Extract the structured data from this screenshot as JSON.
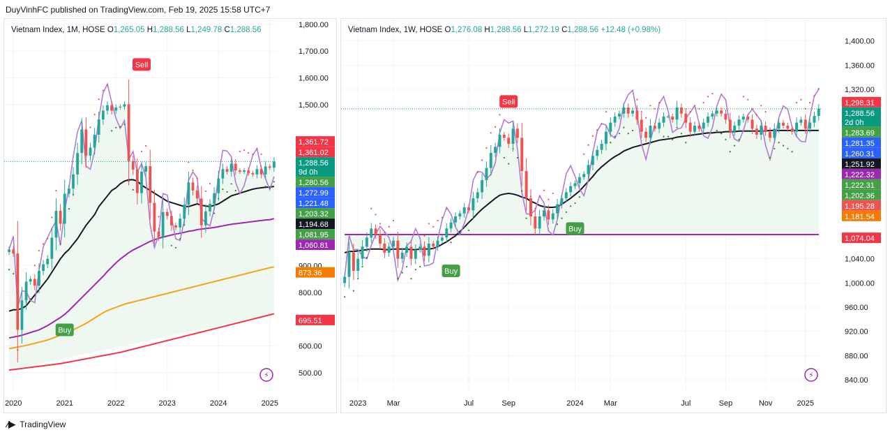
{
  "header": {
    "text": "DuyVinhFC published on TradingView.com, Feb 19, 2025 15:58 UTC+7"
  },
  "footer": {
    "brand": "TradingView",
    "logo_icon": "tradingview-logo-icon"
  },
  "colors": {
    "up": "#26a69a",
    "down": "#ef5350",
    "ma_black": "#131722",
    "ma_purple": "#9c27b0",
    "ma_orange": "#f7a21b",
    "ma_red": "#f23645",
    "green_line": "#4caf50",
    "lilac": "#b07bd3",
    "sar": "#2962ff"
  },
  "chart_data": [
    {
      "type": "candlestick",
      "title": "Vietnam Index, 1M, HOSE",
      "ohlc_label": {
        "o": "1,265.05",
        "h": "1,288.56",
        "l": "1,249.78",
        "c": "1,288.56"
      },
      "ylim": [
        440,
        1810
      ],
      "y_ticks": [
        1800,
        1700,
        1600,
        1500,
        900,
        800,
        600,
        500
      ],
      "x_labels": [
        "2020",
        "2021",
        "2022",
        "2023",
        "2024",
        "2025"
      ],
      "x_label_index": [
        1,
        13,
        25,
        37,
        49,
        61
      ],
      "n_bars": 63,
      "close_series": [
        960,
        945,
        660,
        770,
        840,
        850,
        825,
        880,
        905,
        925,
        1004,
        1104,
        1056,
        1168,
        1187,
        1240,
        1320,
        1408,
        1310,
        1340,
        1388,
        1445,
        1478,
        1498,
        1478,
        1490,
        1493,
        1502,
        1290,
        1258,
        1170,
        1250,
        1271,
        1134,
        1027,
        1007,
        1100,
        1085,
        1050,
        1042,
        1075,
        1127,
        1210,
        1180,
        1150,
        1050,
        1102,
        1130,
        1170,
        1225,
        1260,
        1250,
        1280,
        1255,
        1250,
        1255,
        1245,
        1240,
        1260,
        1240,
        1270,
        1265,
        1288
      ],
      "ma_black": [
        730,
        735,
        735,
        740,
        750,
        770,
        790,
        810,
        830,
        850,
        875,
        900,
        925,
        945,
        960,
        980,
        1000,
        1025,
        1050,
        1070,
        1090,
        1120,
        1140,
        1160,
        1180,
        1190,
        1205,
        1215,
        1220,
        1220,
        1215,
        1200,
        1190,
        1180,
        1170,
        1160,
        1150,
        1140,
        1135,
        1130,
        1125,
        1120,
        1120,
        1125,
        1130,
        1125,
        1122,
        1120,
        1125,
        1130,
        1140,
        1150,
        1160,
        1165,
        1170,
        1175,
        1180,
        1185,
        1188,
        1190,
        1192,
        1193,
        1195
      ],
      "ma_purple": [
        630,
        633,
        636,
        640,
        645,
        650,
        655,
        660,
        668,
        676,
        686,
        696,
        706,
        718,
        732,
        748,
        764,
        780,
        796,
        812,
        828,
        844,
        860,
        878,
        894,
        910,
        924,
        936,
        948,
        958,
        966,
        974,
        982,
        990,
        996,
        1002,
        1006,
        1010,
        1014,
        1018,
        1020,
        1024,
        1028,
        1030,
        1034,
        1036,
        1038,
        1040,
        1042,
        1045,
        1048,
        1051,
        1054,
        1056,
        1058,
        1060,
        1062,
        1064,
        1066,
        1068,
        1070,
        1071,
        1075
      ],
      "ma_orange": [
        590,
        593,
        596,
        599,
        602,
        606,
        610,
        614,
        618,
        622,
        628,
        634,
        640,
        646,
        652,
        660,
        668,
        676,
        684,
        694,
        704,
        714,
        724,
        732,
        738,
        744,
        750,
        756,
        760,
        764,
        768,
        772,
        776,
        780,
        784,
        788,
        792,
        796,
        800,
        804,
        808,
        812,
        816,
        820,
        824,
        828,
        832,
        836,
        840,
        844,
        848,
        852,
        856,
        860,
        864,
        868,
        872,
        876,
        880,
        884,
        888,
        892,
        895
      ],
      "ma_red": [
        510,
        512,
        514,
        516,
        518,
        520,
        522,
        524,
        526,
        528,
        530,
        532,
        534,
        537,
        540,
        543,
        546,
        549,
        552,
        555,
        558,
        561,
        564,
        567,
        570,
        573,
        576,
        580,
        584,
        588,
        592,
        596,
        600,
        604,
        608,
        612,
        616,
        620,
        624,
        628,
        632,
        636,
        640,
        644,
        648,
        652,
        656,
        660,
        664,
        668,
        672,
        676,
        680,
        684,
        688,
        692,
        696,
        700,
        704,
        708,
        712,
        716,
        720
      ],
      "price_labels": [
        {
          "text": "1,361.72",
          "v": 1361.72,
          "color": "#f23645"
        },
        {
          "text": "1,361.02",
          "v": 1361.02,
          "color": "#f23645"
        },
        {
          "text": "1,288.56",
          "v": 1288.56,
          "color": "#089981",
          "sub": "9d 0h"
        },
        {
          "text": "1,280.56",
          "v": 1280.56,
          "color": "#43a047"
        },
        {
          "text": "1,272.99",
          "v": 1272.99,
          "color": "#2962ff"
        },
        {
          "text": "1,221.48",
          "v": 1221.48,
          "color": "#2962ff"
        },
        {
          "text": "1,203.32",
          "v": 1203.32,
          "color": "#43a047"
        },
        {
          "text": "1,194.68",
          "v": 1194.68,
          "color": "#131722"
        },
        {
          "text": "1,081.95",
          "v": 1081.95,
          "color": "#43a047"
        },
        {
          "text": "1,060.81",
          "v": 1060.81,
          "color": "#9c27b0"
        },
        {
          "text": "873.36",
          "v": 873.36,
          "color": "#f57c00"
        },
        {
          "text": "695.51",
          "v": 695.51,
          "color": "#f23645"
        }
      ],
      "signals": [
        {
          "text": "Sell",
          "index": 31,
          "price": 1650,
          "kind": "sell"
        },
        {
          "text": "Buy",
          "index": 13,
          "price": 660,
          "kind": "buy"
        }
      ]
    },
    {
      "type": "candlestick",
      "title": "Vietnam Index, 1W, HOSE",
      "ohlc_label": {
        "o": "1,276.08",
        "h": "1,288.56",
        "l": "1,272.19",
        "c": "1,288.56",
        "chg": "+12.48 (+0.98%)"
      },
      "ylim": [
        825,
        1425
      ],
      "y_ticks": [
        1400,
        1360,
        1320,
        1040,
        1000,
        960,
        920,
        880,
        840
      ],
      "x_labels": [
        "2023",
        "Mar",
        "Jul",
        "Sep",
        "2024",
        "Mar",
        "Jul",
        "Sep",
        "Nov",
        "2025"
      ],
      "x_label_index": [
        3,
        11,
        28,
        37,
        52,
        60,
        77,
        86,
        95,
        104
      ],
      "n_bars": 108,
      "close_series": [
        1010,
        1050,
        1020,
        1040,
        1060,
        1075,
        1090,
        1080,
        1065,
        1050,
        1060,
        1070,
        1040,
        1050,
        1060,
        1040,
        1055,
        1060,
        1045,
        1065,
        1060,
        1070,
        1075,
        1090,
        1100,
        1110,
        1115,
        1125,
        1120,
        1140,
        1150,
        1170,
        1190,
        1215,
        1225,
        1245,
        1240,
        1230,
        1255,
        1240,
        1185,
        1140,
        1110,
        1090,
        1110,
        1120,
        1105,
        1115,
        1130,
        1140,
        1150,
        1160,
        1165,
        1175,
        1180,
        1195,
        1210,
        1220,
        1230,
        1250,
        1265,
        1275,
        1280,
        1290,
        1280,
        1285,
        1270,
        1250,
        1240,
        1260,
        1255,
        1265,
        1275,
        1275,
        1270,
        1290,
        1280,
        1265,
        1250,
        1260,
        1255,
        1265,
        1275,
        1280,
        1285,
        1280,
        1270,
        1250,
        1260,
        1270,
        1275,
        1270,
        1255,
        1245,
        1260,
        1250,
        1240,
        1255,
        1265,
        1260,
        1255,
        1250,
        1265,
        1270,
        1255,
        1265,
        1276,
        1288
      ],
      "ma_black": [
        1050,
        1052,
        1052,
        1053,
        1054,
        1055,
        1056,
        1056,
        1056,
        1055,
        1055,
        1056,
        1056,
        1056,
        1056,
        1055,
        1055,
        1056,
        1056,
        1056,
        1057,
        1060,
        1064,
        1068,
        1073,
        1078,
        1085,
        1092,
        1100,
        1107,
        1115,
        1122,
        1128,
        1134,
        1140,
        1145,
        1147,
        1148,
        1147,
        1145,
        1142,
        1140,
        1135,
        1132,
        1128,
        1126,
        1125,
        1125,
        1126,
        1130,
        1135,
        1140,
        1146,
        1152,
        1160,
        1168,
        1176,
        1185,
        1192,
        1198,
        1204,
        1209,
        1213,
        1218,
        1221,
        1224,
        1226,
        1228,
        1230,
        1232,
        1234,
        1236,
        1237,
        1238,
        1239,
        1241,
        1242,
        1243,
        1244,
        1245,
        1246,
        1247,
        1248,
        1248,
        1249,
        1249,
        1250,
        1250,
        1250,
        1251,
        1251,
        1251,
        1251,
        1251,
        1251,
        1251,
        1252,
        1252,
        1252,
        1252,
        1252,
        1252,
        1252,
        1252,
        1252,
        1252,
        1252,
        1252
      ],
      "ma_purple": [
        1080,
        1080,
        1080,
        1080,
        1080,
        1080,
        1080,
        1080,
        1080,
        1080,
        1080,
        1080,
        1080,
        1080,
        1080,
        1080,
        1080,
        1080,
        1080,
        1080,
        1080,
        1080,
        1080,
        1080,
        1080,
        1080,
        1080,
        1080,
        1080,
        1080,
        1080,
        1080,
        1080,
        1080,
        1080,
        1080,
        1080,
        1080,
        1080,
        1080,
        1080,
        1080,
        1080,
        1080,
        1080,
        1080,
        1080,
        1080,
        1080,
        1080,
        1080,
        1080,
        1080,
        1080,
        1080,
        1080,
        1080,
        1080,
        1080,
        1080,
        1080,
        1080,
        1080,
        1080,
        1080,
        1080,
        1080,
        1080,
        1080,
        1080,
        1080,
        1080,
        1080,
        1080,
        1080,
        1080,
        1080,
        1080,
        1080,
        1080,
        1080,
        1080,
        1080,
        1080,
        1080,
        1080,
        1080,
        1080,
        1080,
        1080,
        1080,
        1080,
        1080,
        1080,
        1080,
        1080,
        1080,
        1080,
        1080,
        1080,
        1080,
        1080,
        1080,
        1080,
        1080,
        1080,
        1080,
        1080
      ],
      "ma_orange": [
        1080,
        1080,
        1080,
        1080,
        1080,
        1080,
        1080,
        1080,
        1080,
        1080,
        1080,
        1080,
        1080,
        1080,
        1080,
        1080,
        1080,
        1080,
        1080,
        1080,
        1080,
        1080,
        1080,
        1080,
        1080,
        1080,
        1080,
        1080,
        1080,
        1080,
        1080,
        1080,
        1080,
        1080,
        1080,
        1080,
        1080,
        1080,
        1080,
        1080,
        1080,
        1080,
        1080,
        1080,
        1080,
        1080,
        1080,
        1080,
        1080,
        1080,
        1080,
        1080,
        1080,
        1080,
        1080,
        1080,
        1080,
        1080,
        1080,
        1080,
        1080,
        1080,
        1080,
        1080,
        1080,
        1080,
        1080,
        1080,
        1080,
        1080,
        1080,
        1080,
        1080,
        1080,
        1080,
        1080,
        1080,
        1080,
        1080,
        1080,
        1080,
        1080,
        1080,
        1080,
        1080,
        1080,
        1080,
        1080,
        1080,
        1080,
        1080,
        1080,
        1080,
        1080,
        1080,
        1080,
        1080,
        1080,
        1080,
        1080,
        1080,
        1080,
        1080,
        1080,
        1080,
        1080,
        1080,
        1080
      ],
      "ma_red": [
        1080,
        1080,
        1080,
        1080,
        1080,
        1080,
        1080,
        1080,
        1080,
        1080,
        1080,
        1080,
        1080,
        1080,
        1080,
        1080,
        1080,
        1080,
        1080,
        1080,
        1080,
        1080,
        1080,
        1080,
        1080,
        1080,
        1080,
        1080,
        1080,
        1080,
        1080,
        1080,
        1080,
        1080,
        1080,
        1080,
        1080,
        1080,
        1080,
        1080,
        1080,
        1080,
        1080,
        1080,
        1080,
        1080,
        1080,
        1080,
        1080,
        1080,
        1080,
        1080,
        1080,
        1080,
        1080,
        1080,
        1080,
        1080,
        1080,
        1080,
        1080,
        1080,
        1080,
        1080,
        1080,
        1080,
        1080,
        1080,
        1080,
        1080,
        1080,
        1080,
        1080,
        1080,
        1080,
        1080,
        1080,
        1080,
        1080,
        1080,
        1080,
        1080,
        1080,
        1080,
        1080,
        1080,
        1080,
        1080,
        1080,
        1080,
        1080,
        1080,
        1080,
        1080,
        1080,
        1080,
        1080,
        1080,
        1080,
        1080,
        1080,
        1080,
        1080,
        1080,
        1080,
        1080,
        1080,
        1080
      ],
      "price_labels": [
        {
          "text": "1,298.31",
          "v": 1298.31,
          "color": "#f23645"
        },
        {
          "text": "1,288.56",
          "v": 1288.56,
          "color": "#089981",
          "sub": "2d 0h"
        },
        {
          "text": "1,283.69",
          "v": 1283.69,
          "color": "#43a047"
        },
        {
          "text": "1,281.35",
          "v": 1281.35,
          "color": "#2962ff"
        },
        {
          "text": "1,260.31",
          "v": 1260.31,
          "color": "#2962ff"
        },
        {
          "text": "1,251.92",
          "v": 1251.92,
          "color": "#131722"
        },
        {
          "text": "1,222.32",
          "v": 1222.32,
          "color": "#9c27b0"
        },
        {
          "text": "1,222.31",
          "v": 1222.31,
          "color": "#43a047"
        },
        {
          "text": "1,202.36",
          "v": 1202.36,
          "color": "#43a047"
        },
        {
          "text": "1,195.28",
          "v": 1195.28,
          "color": "#ef5350"
        },
        {
          "text": "1,181.54",
          "v": 1181.54,
          "color": "#f57c00"
        },
        {
          "text": "1,074.04",
          "v": 1074.04,
          "color": "#f23645"
        }
      ],
      "signals": [
        {
          "text": "Sell",
          "index": 37,
          "price": 1300,
          "kind": "sell"
        },
        {
          "text": "Buy",
          "index": 24,
          "price": 1020,
          "kind": "buy"
        },
        {
          "text": "Buy",
          "index": 52,
          "price": 1090,
          "kind": "buy"
        }
      ]
    }
  ]
}
